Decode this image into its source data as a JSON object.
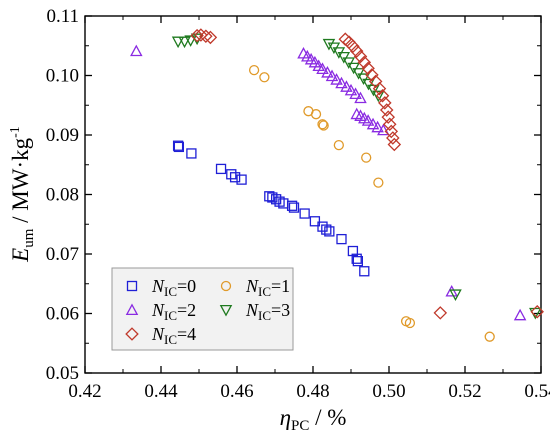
{
  "chart_data": {
    "type": "scatter",
    "x_axis": {
      "label_main": "η",
      "label_sub": "PC",
      "label_rest": " / %",
      "range": [
        0.42,
        0.54
      ],
      "ticks": [
        0.42,
        0.44,
        0.46,
        0.48,
        0.5,
        0.52,
        0.54
      ],
      "tick_labels": [
        "0.42",
        "0.44",
        "0.46",
        "0.48",
        "0.50",
        "0.52",
        "0.54"
      ]
    },
    "y_axis": {
      "label_main": "E",
      "label_sub": "um",
      "label_rest": " / MW·kg",
      "label_sup": "-1",
      "range": [
        0.05,
        0.11
      ],
      "ticks": [
        0.05,
        0.06,
        0.07,
        0.08,
        0.09,
        0.1,
        0.11
      ],
      "tick_labels": [
        "0.05",
        "0.06",
        "0.07",
        "0.08",
        "0.09",
        "0.10",
        "0.11"
      ]
    },
    "grid": false,
    "legend_position": "bottom-left",
    "series": [
      {
        "name": "NIC=0",
        "label_main": "N",
        "label_sub": "IC",
        "label_rest": "=0",
        "marker": "square",
        "color": "#1f1fd6",
        "points": [
          [
            0.4445,
            0.0882
          ],
          [
            0.4447,
            0.088
          ],
          [
            0.448,
            0.0869
          ],
          [
            0.4558,
            0.0843
          ],
          [
            0.4585,
            0.0834
          ],
          [
            0.4595,
            0.0829
          ],
          [
            0.4612,
            0.0825
          ],
          [
            0.4685,
            0.0797
          ],
          [
            0.4693,
            0.0795
          ],
          [
            0.4703,
            0.0792
          ],
          [
            0.4712,
            0.0788
          ],
          [
            0.4722,
            0.0785
          ],
          [
            0.4745,
            0.0781
          ],
          [
            0.475,
            0.0778
          ],
          [
            0.4778,
            0.0768
          ],
          [
            0.4805,
            0.0755
          ],
          [
            0.4825,
            0.0746
          ],
          [
            0.4835,
            0.0741
          ],
          [
            0.4843,
            0.0738
          ],
          [
            0.4875,
            0.0725
          ],
          [
            0.4905,
            0.0705
          ],
          [
            0.4915,
            0.0692
          ],
          [
            0.4918,
            0.0688
          ],
          [
            0.4935,
            0.0671
          ]
        ]
      },
      {
        "name": "NIC=1",
        "label_main": "N",
        "label_sub": "IC",
        "label_rest": "=1",
        "marker": "circle",
        "color": "#e09a2a",
        "points": [
          [
            0.4645,
            0.1009
          ],
          [
            0.4672,
            0.0997
          ],
          [
            0.4788,
            0.094
          ],
          [
            0.4808,
            0.0935
          ],
          [
            0.4825,
            0.0918
          ],
          [
            0.4828,
            0.0916
          ],
          [
            0.4868,
            0.0883
          ],
          [
            0.494,
            0.0862
          ],
          [
            0.4972,
            0.082
          ],
          [
            0.5045,
            0.0587
          ],
          [
            0.5055,
            0.0584
          ],
          [
            0.5265,
            0.0561
          ]
        ]
      },
      {
        "name": "NIC=2",
        "label_main": "N",
        "label_sub": "IC",
        "label_rest": "=2",
        "marker": "triangle-up",
        "color": "#8a2be2",
        "points": [
          [
            0.4335,
            0.1041
          ],
          [
            0.4775,
            0.1037
          ],
          [
            0.4785,
            0.1032
          ],
          [
            0.4795,
            0.1027
          ],
          [
            0.4805,
            0.1022
          ],
          [
            0.4815,
            0.1016
          ],
          [
            0.4825,
            0.1011
          ],
          [
            0.4838,
            0.1005
          ],
          [
            0.485,
            0.0999
          ],
          [
            0.4862,
            0.0993
          ],
          [
            0.4875,
            0.0987
          ],
          [
            0.4888,
            0.0981
          ],
          [
            0.49,
            0.0975
          ],
          [
            0.4912,
            0.0969
          ],
          [
            0.4925,
            0.0962
          ],
          [
            0.4915,
            0.0935
          ],
          [
            0.4925,
            0.0932
          ],
          [
            0.4935,
            0.0928
          ],
          [
            0.4945,
            0.0924
          ],
          [
            0.4958,
            0.0918
          ],
          [
            0.497,
            0.0913
          ],
          [
            0.4985,
            0.0908
          ],
          [
            0.5165,
            0.0637
          ],
          [
            0.5345,
            0.0597
          ]
        ]
      },
      {
        "name": "NIC=3",
        "label_main": "N",
        "label_sub": "IC",
        "label_rest": "=3",
        "marker": "triangle-down",
        "color": "#1f7a1f",
        "points": [
          [
            0.4445,
            0.1057
          ],
          [
            0.4462,
            0.1057
          ],
          [
            0.4478,
            0.1059
          ],
          [
            0.4495,
            0.1062
          ],
          [
            0.4842,
            0.1053
          ],
          [
            0.4855,
            0.1047
          ],
          [
            0.4868,
            0.1039
          ],
          [
            0.4881,
            0.1031
          ],
          [
            0.4894,
            0.1022
          ],
          [
            0.4907,
            0.1013
          ],
          [
            0.492,
            0.1004
          ],
          [
            0.4933,
            0.0995
          ],
          [
            0.4946,
            0.0986
          ],
          [
            0.4959,
            0.0976
          ],
          [
            0.4972,
            0.0966
          ],
          [
            0.5175,
            0.0632
          ],
          [
            0.5385,
            0.0601
          ]
        ]
      },
      {
        "name": "NIC=4",
        "label_main": "N",
        "label_sub": "IC",
        "label_rest": "=4",
        "marker": "diamond",
        "color": "#c0392b",
        "points": [
          [
            0.4495,
            0.1067
          ],
          [
            0.4505,
            0.1068
          ],
          [
            0.4518,
            0.1066
          ],
          [
            0.453,
            0.1064
          ],
          [
            0.4885,
            0.1061
          ],
          [
            0.4895,
            0.1056
          ],
          [
            0.4905,
            0.1049
          ],
          [
            0.4915,
            0.1041
          ],
          [
            0.4925,
            0.1032
          ],
          [
            0.4935,
            0.1022
          ],
          [
            0.4945,
            0.1012
          ],
          [
            0.4955,
            0.1001
          ],
          [
            0.4965,
            0.099
          ],
          [
            0.4975,
            0.0978
          ],
          [
            0.4983,
            0.0966
          ],
          [
            0.4989,
            0.0954
          ],
          [
            0.4994,
            0.0942
          ],
          [
            0.4998,
            0.093
          ],
          [
            0.5002,
            0.0918
          ],
          [
            0.5006,
            0.0906
          ],
          [
            0.501,
            0.0895
          ],
          [
            0.5014,
            0.0884
          ],
          [
            0.5135,
            0.0601
          ],
          [
            0.539,
            0.0603
          ]
        ]
      }
    ]
  }
}
